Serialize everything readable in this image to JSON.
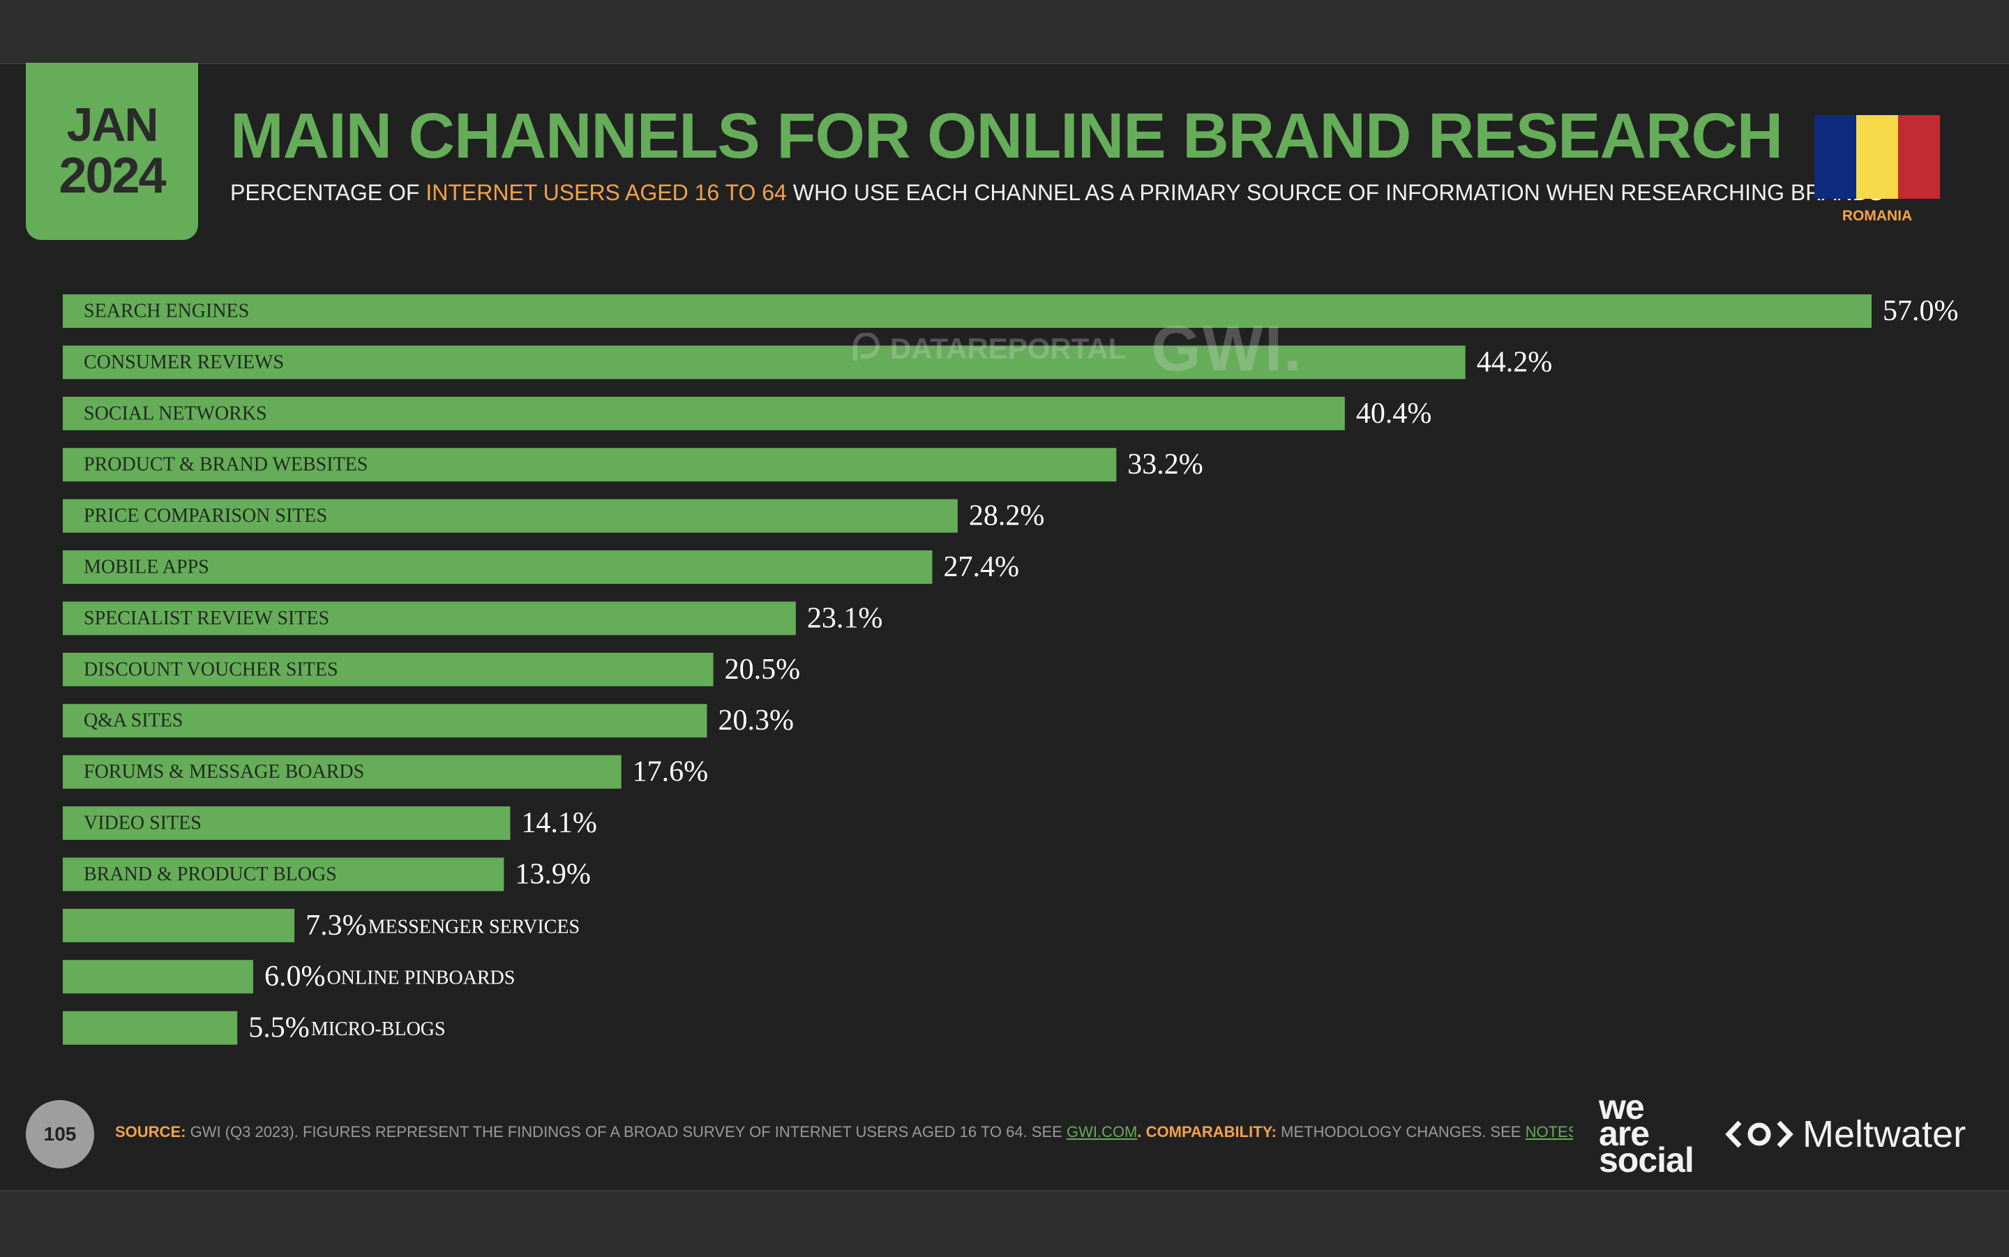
{
  "header": {
    "month": "JAN",
    "year": "2024",
    "title": "MAIN CHANNELS FOR ONLINE BRAND RESEARCH",
    "subtitle_pre": "PERCENTAGE OF ",
    "subtitle_highlight": "INTERNET USERS AGED 16 TO 64",
    "subtitle_post": " WHO USE EACH CHANNEL AS A PRIMARY SOURCE OF INFORMATION WHEN RESEARCHING BRANDS",
    "country": "ROMANIA"
  },
  "flag": {
    "colors": [
      "#0f2b7d",
      "#f8d94a",
      "#c12b31"
    ]
  },
  "colors": {
    "bar": "#66ad5a",
    "background": "#212121",
    "accent": "#f4a24a"
  },
  "watermark": {
    "datareportal": "DATAREPORTAL",
    "gwi": "GWI."
  },
  "chart_data": {
    "type": "bar",
    "orientation": "horizontal",
    "categories": [
      "SEARCH ENGINES",
      "CONSUMER REVIEWS",
      "SOCIAL NETWORKS",
      "PRODUCT & BRAND WEBSITES",
      "PRICE COMPARISON SITES",
      "MOBILE APPS",
      "SPECIALIST REVIEW SITES",
      "DISCOUNT VOUCHER SITES",
      "Q&A SITES",
      "FORUMS & MESSAGE BOARDS",
      "VIDEO SITES",
      "BRAND & PRODUCT BLOGS",
      "MESSENGER SERVICES",
      "ONLINE PINBOARDS",
      "MICRO-BLOGS"
    ],
    "values": [
      57.0,
      44.2,
      40.4,
      33.2,
      28.2,
      27.4,
      23.1,
      20.5,
      20.3,
      17.6,
      14.1,
      13.9,
      7.3,
      6.0,
      5.5
    ],
    "value_labels": [
      "57.0%",
      "44.2%",
      "40.4%",
      "33.2%",
      "28.2%",
      "27.4%",
      "23.1%",
      "20.5%",
      "20.3%",
      "17.6%",
      "14.1%",
      "13.9%",
      "7.3%",
      "6.0%",
      "5.5%"
    ],
    "xlim": [
      0,
      57.0
    ],
    "grid": false,
    "legend": "none"
  },
  "footer": {
    "page_number": "105",
    "source_label": "SOURCE:",
    "source_text": " GWI (Q3 2023). FIGURES REPRESENT THE FINDINGS OF A BROAD SURVEY OF INTERNET USERS AGED 16 TO 64. SEE ",
    "source_link": "GWI.COM",
    "comparability_label": ". COMPARABILITY:",
    "comparability_text": " METHODOLOGY CHANGES. SEE ",
    "notes_link": "NOTES ON DATA",
    "end": ".",
    "logo1_line1": "we",
    "logo1_line2": "are",
    "logo1_line3": "social",
    "logo2": "Meltwater"
  }
}
